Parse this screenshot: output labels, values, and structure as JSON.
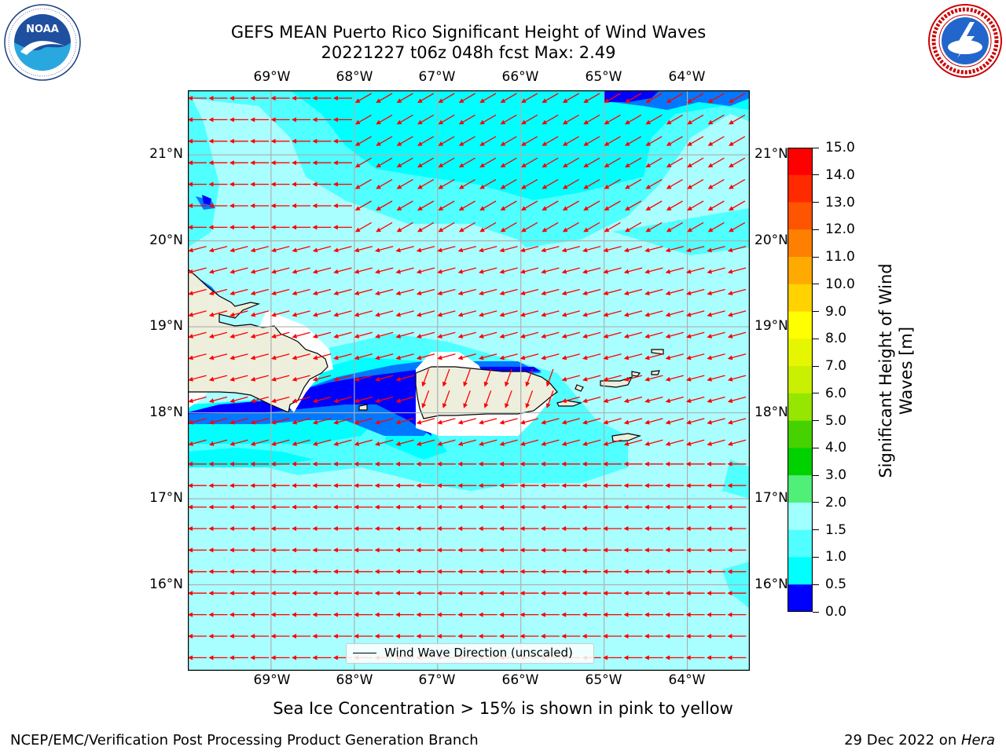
{
  "header": {
    "title_line1": "GEFS MEAN Puerto Rico Significant Height of Wind Waves",
    "title_line2": "20221227 t06z 048h fcst   Max: 2.49"
  },
  "logos": {
    "noaa": {
      "text": "NOAA",
      "ring_text": "NATIONAL OCEANIC AND ATMOSPHERIC ADMINISTRATION · U.S. DEPARTMENT OF COMMERCE"
    },
    "nws": {
      "ring_text": "NATIONAL WEATHER SERVICE"
    }
  },
  "map": {
    "lon_labels": [
      "69°W",
      "68°W",
      "67°W",
      "66°W",
      "65°W",
      "64°W"
    ],
    "lat_labels": [
      "21°N",
      "20°N",
      "19°N",
      "18°N",
      "17°N",
      "16°N"
    ],
    "extent": {
      "lon_min": -70.0,
      "lon_max": -63.25,
      "lat_min": 15.0,
      "lat_max": 21.75
    },
    "wind_direction": "toward west (easterly flow)",
    "legend_label": "Wind Wave Direction (unscaled)"
  },
  "colorbar": {
    "title": "Significant Height of Wind Waves [m]",
    "title_line1": "Significant Height of Wind",
    "title_line2": "Waves [m]",
    "ticks": [
      "15.0",
      "14.0",
      "13.0",
      "12.0",
      "11.0",
      "10.0",
      "9.0",
      "8.0",
      "7.0",
      "6.0",
      "5.0",
      "4.0",
      "3.0",
      "2.0",
      "1.5",
      "1.0",
      "0.5",
      "0.0"
    ],
    "colors": [
      "#ff0000",
      "#ff2a00",
      "#ff5500",
      "#ff8000",
      "#ffaa00",
      "#ffd200",
      "#ffff00",
      "#e6f500",
      "#c8f000",
      "#96e600",
      "#46d200",
      "#00d200",
      "#50f078",
      "#a0ffff",
      "#50ffff",
      "#00ffff",
      "#0078ff",
      "#0000ff"
    ],
    "main_fill": "#a9ffff",
    "arrow_color": "#ff0000",
    "land_color": "#eeeedd"
  },
  "footer": {
    "note": "Sea Ice Concentration > 15% is shown in pink to yellow",
    "credit": "NCEP/EMC/Verification Post Processing Product Generation Branch",
    "date": "29 Dec 2022 on ",
    "host": "Hera"
  }
}
